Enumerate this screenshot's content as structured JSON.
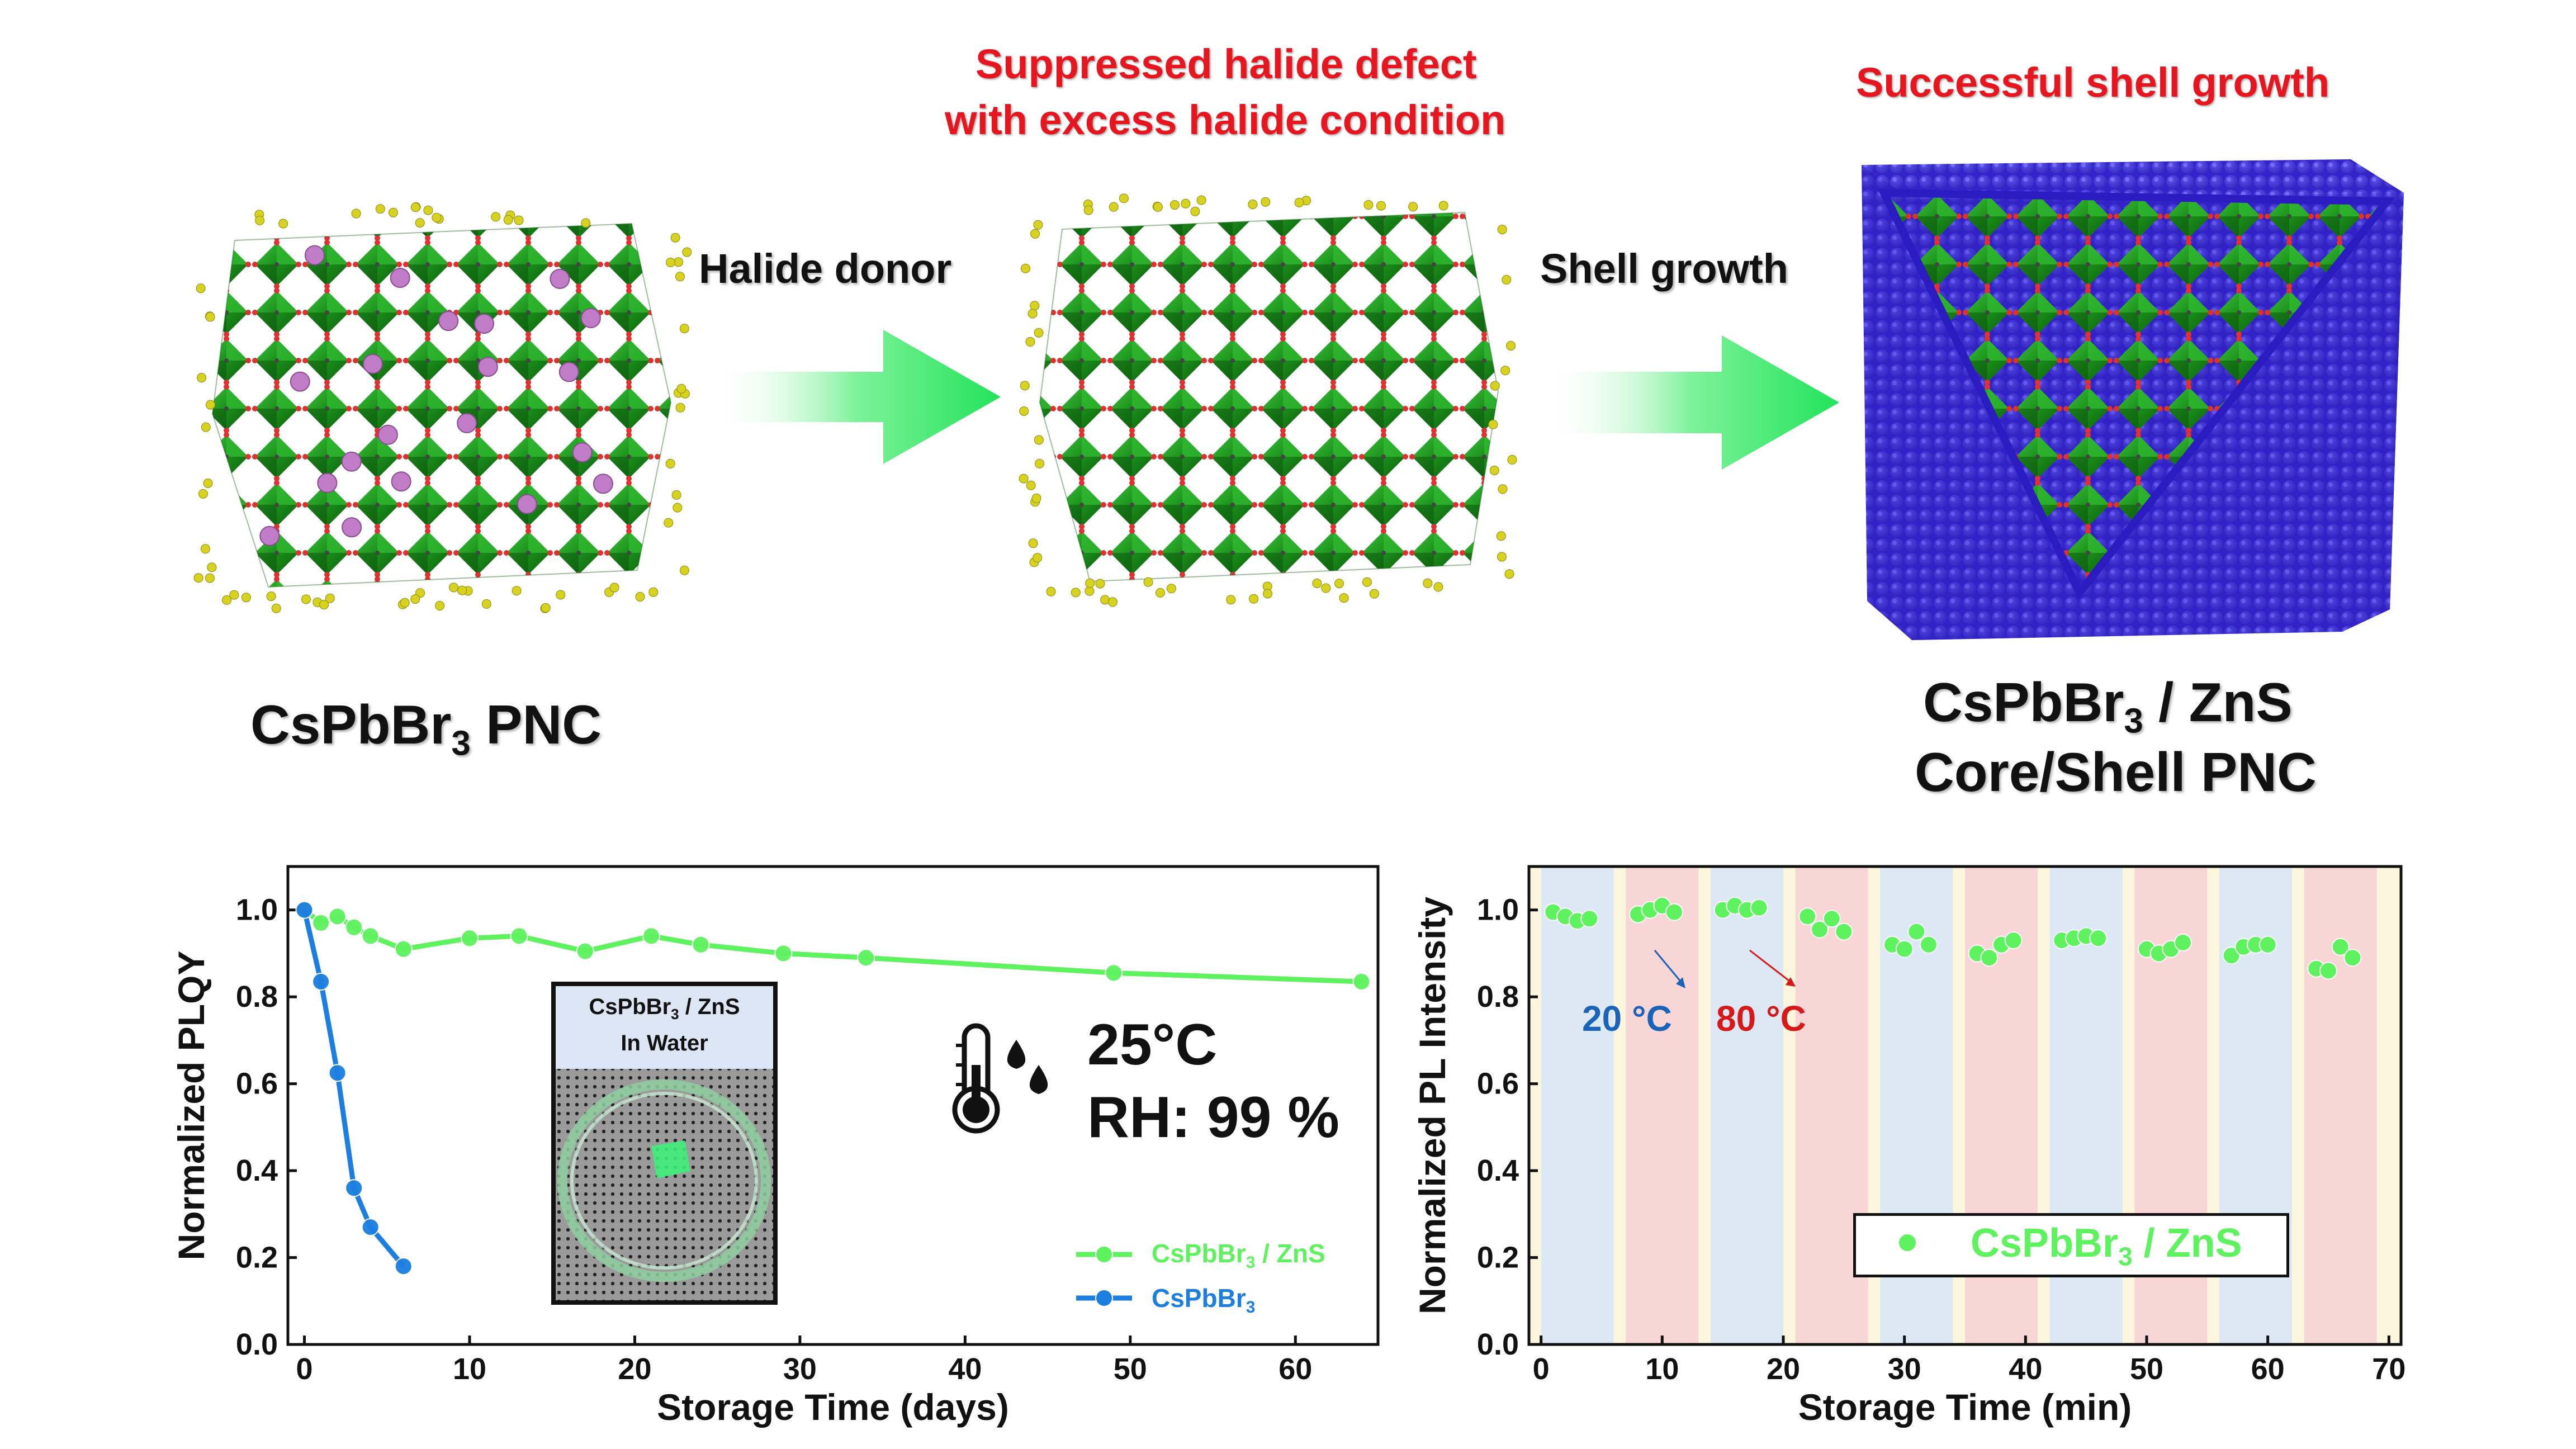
{
  "schematic": {
    "step1_label": "Halide donor",
    "step2_label": "Shell growth",
    "annotation_middle_line1": "Suppressed halide defect",
    "annotation_middle_line2": "with excess halide condition",
    "annotation_right": "Successful shell growth",
    "label_left_main": "CsPbBr",
    "label_left_sub": "3",
    "label_left_tail": " PNC",
    "label_right_line1_main": "CsPbBr",
    "label_right_line1_sub": "3",
    "label_right_line1_tail": " / ZnS",
    "label_right_line2": "Core/Shell PNC",
    "colors": {
      "octahedron": "#1f9e1f",
      "halide": "#d7d21e",
      "vacancy": "#c07cc6",
      "shell": "#3b2fd6",
      "arrow": "#22e35a",
      "annotation": "#e8141e"
    }
  },
  "chart_data": [
    {
      "type": "line",
      "xlabel": "Storage Time (days)",
      "ylabel": "Normalized PLQY",
      "xlim": [
        -1,
        65
      ],
      "ylim": [
        0,
        1.1
      ],
      "xticks": [
        "0",
        "10",
        "20",
        "30",
        "40",
        "50",
        "60"
      ],
      "yticks": [
        "0.0",
        "0.2",
        "0.4",
        "0.6",
        "0.8",
        "1.0"
      ],
      "legend": "bottom-right",
      "series": [
        {
          "name_main": "CsPbBr",
          "name_sub": "3",
          "name_tail": " / ZnS",
          "color": "#5ef25e",
          "x": [
            0,
            1,
            2,
            3,
            4,
            6,
            10,
            13,
            17,
            21,
            24,
            29,
            34,
            49,
            64
          ],
          "y": [
            1.0,
            0.97,
            0.985,
            0.96,
            0.94,
            0.91,
            0.935,
            0.94,
            0.905,
            0.94,
            0.92,
            0.9,
            0.89,
            0.855,
            0.835
          ]
        },
        {
          "name_main": "CsPbBr",
          "name_sub": "3",
          "name_tail": "",
          "color": "#1b7ee0",
          "x": [
            0,
            1,
            2,
            3,
            4,
            6
          ],
          "y": [
            1.0,
            0.835,
            0.625,
            0.36,
            0.27,
            0.18
          ]
        }
      ],
      "inset": {
        "title_main": "CsPbBr",
        "title_sub": "3",
        "title_tail": " / ZnS",
        "title_line2": "In Water"
      },
      "condition_temp": "25°C",
      "condition_rh": "RH: 99 %"
    },
    {
      "type": "scatter",
      "xlabel": "Storage Time (min)",
      "ylabel": "Normalized PL Intensity",
      "xlim": [
        -1,
        71
      ],
      "ylim": [
        0,
        1.1
      ],
      "xticks": [
        "0",
        "10",
        "20",
        "30",
        "40",
        "50",
        "60",
        "70"
      ],
      "yticks": [
        "0.0",
        "0.2",
        "0.4",
        "0.6",
        "0.8",
        "1.0"
      ],
      "legend": "bottom-right",
      "annot_cold": "20 °C",
      "annot_hot": "80 °C",
      "band_cold_color": "#dce9f5",
      "band_hot_color": "#f8d6d6",
      "band_gap_color": "#fbf6dd",
      "bands": [
        {
          "start": 0,
          "end": 6,
          "kind": "cold"
        },
        {
          "start": 7,
          "end": 13,
          "kind": "hot"
        },
        {
          "start": 14,
          "end": 20,
          "kind": "cold"
        },
        {
          "start": 21,
          "end": 27,
          "kind": "hot"
        },
        {
          "start": 28,
          "end": 34,
          "kind": "cold"
        },
        {
          "start": 35,
          "end": 41,
          "kind": "hot"
        },
        {
          "start": 42,
          "end": 48,
          "kind": "cold"
        },
        {
          "start": 49,
          "end": 55,
          "kind": "hot"
        },
        {
          "start": 56,
          "end": 62,
          "kind": "cold"
        },
        {
          "start": 63,
          "end": 69,
          "kind": "hot"
        }
      ],
      "series": [
        {
          "name_main": "CsPbBr",
          "name_sub": "3",
          "name_tail": " / ZnS",
          "color": "#5ef25e",
          "x": [
            1,
            2,
            3,
            4,
            8,
            9,
            10,
            11,
            15,
            16,
            17,
            18,
            22,
            23,
            24,
            25,
            29,
            30,
            31,
            32,
            36,
            37,
            38,
            39,
            43,
            44,
            45,
            46,
            50,
            51,
            52,
            53,
            57,
            58,
            59,
            60,
            64,
            65,
            66,
            67
          ],
          "y": [
            0.995,
            0.985,
            0.975,
            0.98,
            0.99,
            1.0,
            1.01,
            0.995,
            1.0,
            1.01,
            1.0,
            1.005,
            0.985,
            0.955,
            0.98,
            0.95,
            0.92,
            0.91,
            0.95,
            0.92,
            0.9,
            0.89,
            0.92,
            0.93,
            0.93,
            0.935,
            0.94,
            0.935,
            0.91,
            0.9,
            0.91,
            0.925,
            0.895,
            0.915,
            0.92,
            0.92,
            0.865,
            0.86,
            0.915,
            0.89
          ]
        }
      ]
    }
  ]
}
